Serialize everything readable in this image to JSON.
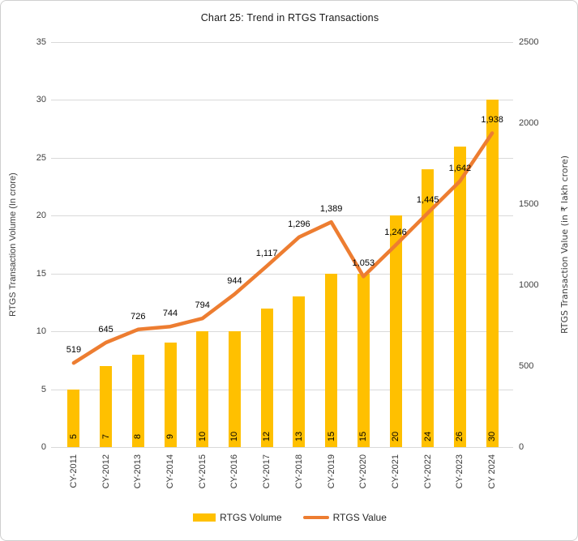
{
  "title": "Chart 25: Trend in RTGS Transactions",
  "chart_data": {
    "type": "bar",
    "subtype": "combo-bar-line-dual-axis",
    "title": "Chart 25: Trend in RTGS Transactions",
    "categories": [
      "CY-2011",
      "CY-2012",
      "CY-2013",
      "CY-2014",
      "CY-2015",
      "CY-2016",
      "CY-2017",
      "CY-2018",
      "CY-2019",
      "CY-2020",
      "CY-2021",
      "CY-2022",
      "CY-2023",
      "CY 2024"
    ],
    "series": [
      {
        "name": "RTGS Volume",
        "type": "bar",
        "axis": "left",
        "color": "#FFC000",
        "values": [
          5,
          7,
          8,
          9,
          10,
          10,
          12,
          13,
          15,
          15,
          20,
          24,
          26,
          30
        ],
        "value_labels": [
          "5",
          "7",
          "8",
          "9",
          "10",
          "10",
          "12",
          "13",
          "15",
          "15",
          "20",
          "24",
          "26",
          "30"
        ]
      },
      {
        "name": "RTGS Value",
        "type": "line",
        "axis": "right",
        "color": "#ED7D31",
        "values": [
          519,
          645,
          726,
          744,
          794,
          944,
          1117,
          1296,
          1389,
          1053,
          1246,
          1445,
          1642,
          1938
        ],
        "value_labels": [
          "519",
          "645",
          "726",
          "744",
          "794",
          "944",
          "1,117",
          "1,296",
          "1,389",
          "1,053",
          "1,246",
          "1,445",
          "1,642",
          "1,938"
        ]
      }
    ],
    "left_axis": {
      "label": "RTGS Transaction Volume (In crore)",
      "min": 0,
      "max": 35,
      "step": 5,
      "tick_labels": [
        "0",
        "5",
        "10",
        "15",
        "20",
        "25",
        "30",
        "35"
      ]
    },
    "right_axis": {
      "label": "RTGS Transaction Value (in ₹ lakh crore)",
      "min": 0,
      "max": 2500,
      "step": 500,
      "tick_labels": [
        "0",
        "500",
        "1000",
        "1500",
        "2000",
        "2500"
      ]
    },
    "grid": true,
    "legend_position": "bottom"
  },
  "legend": {
    "volume_label": "RTGS Volume",
    "value_label": "RTGS Value"
  },
  "colors": {
    "bar": "#FFC000",
    "line": "#ED7D31",
    "gridline": "#d9d9d9",
    "tick_text": "#404040",
    "label_text": "#000000"
  }
}
